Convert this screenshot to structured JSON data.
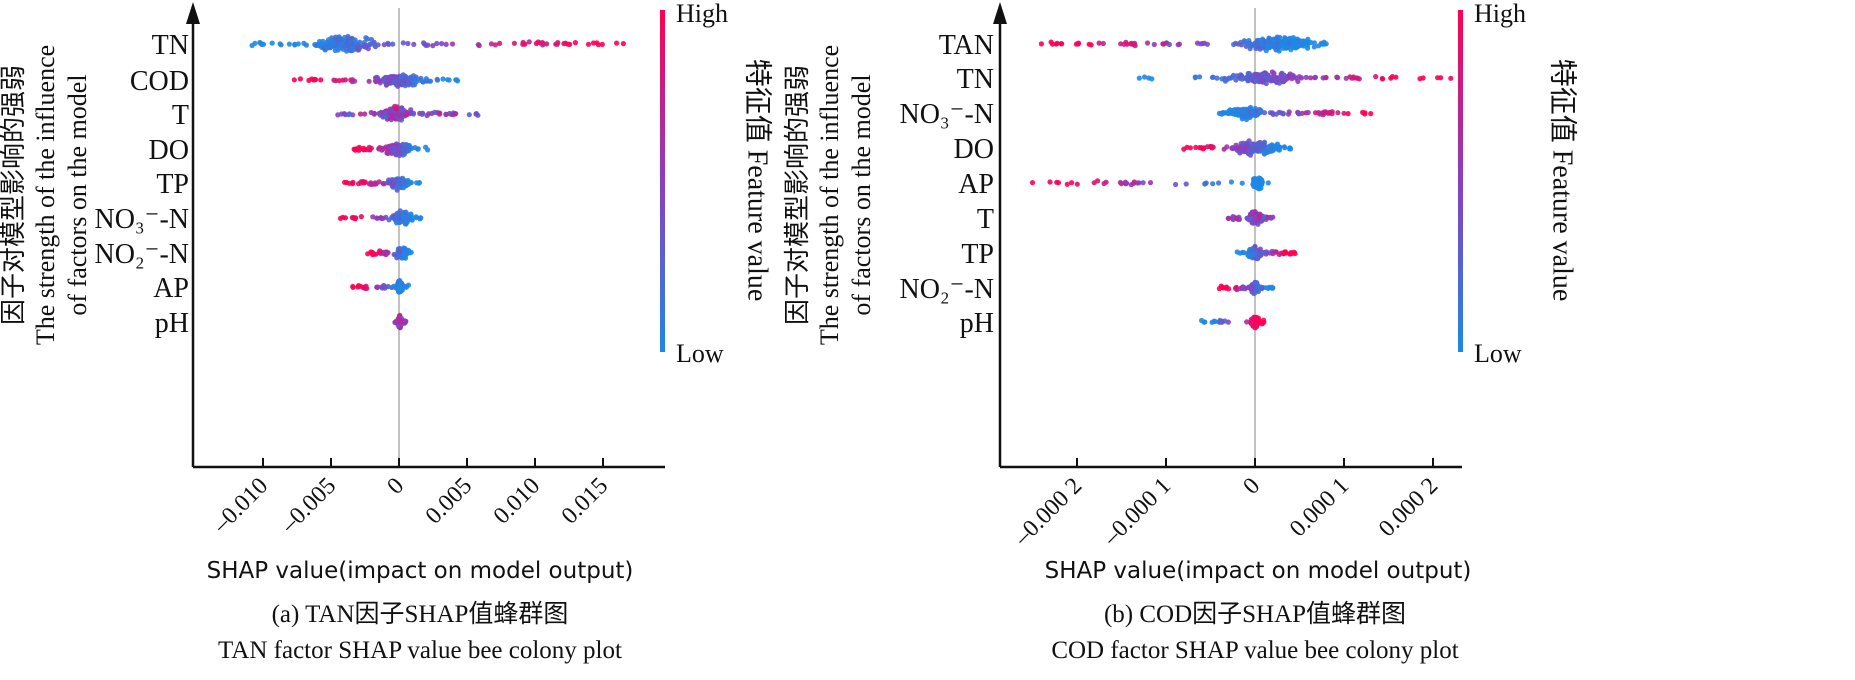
{
  "colors": {
    "low": "#1e88e5",
    "high": "#ff0052",
    "axis": "#111111",
    "zero_line": "#999999"
  },
  "chart_data": [
    {
      "type": "scatter",
      "subtype": "beeswarm",
      "caption_cn": "(a) TAN因子SHAP值蜂群图",
      "caption_en": "TAN factor SHAP value bee colony plot",
      "xlabel": "SHAP value(impact on model output)",
      "ylabel_cn": "因子对模型影响的强弱",
      "ylabel_en_1": "The strength of the influence",
      "ylabel_en_2": "of factors on the model",
      "colorbar": {
        "high": "High",
        "low": "Low",
        "title": "特征值 Feature value"
      },
      "xlim": [
        -0.0125,
        0.0175
      ],
      "xticks": [
        -0.01,
        -0.005,
        0,
        0.005,
        0.01,
        0.015
      ],
      "xtick_labels": [
        "–0.010",
        "–0.005",
        "0",
        "0.005",
        "0.010",
        "0.015"
      ],
      "features": [
        {
          "label": "TN",
          "min": -0.0108,
          "max": 0.0165,
          "core": [
            -0.0065,
            -0.0015
          ],
          "high_side": "positive"
        },
        {
          "label": "COD",
          "min": -0.0077,
          "max": 0.0043,
          "core": [
            -0.002,
            0.002
          ],
          "high_side": "negative"
        },
        {
          "label": "T",
          "min": -0.0045,
          "max": 0.0058,
          "core": [
            -0.0015,
            0.001
          ],
          "high_side": "center"
        },
        {
          "label": "DO",
          "min": -0.0033,
          "max": 0.0021,
          "core": [
            -0.001,
            0.001
          ],
          "high_side": "negative"
        },
        {
          "label": "TP",
          "min": -0.004,
          "max": 0.0015,
          "core": [
            -0.0008,
            0.0008
          ],
          "high_side": "negative"
        },
        {
          "label": "NO₃⁻-N",
          "min": -0.0043,
          "max": 0.0016,
          "core": [
            -0.0005,
            0.001
          ],
          "high_side": "negative"
        },
        {
          "label": "NO₂⁻-N",
          "min": -0.0023,
          "max": 0.0009,
          "core": [
            -0.0003,
            0.0007
          ],
          "high_side": "negative"
        },
        {
          "label": "AP",
          "min": -0.0034,
          "max": 0.0007,
          "core": [
            -0.0002,
            0.0003
          ],
          "high_side": "negative"
        },
        {
          "label": "pH",
          "min": -0.0003,
          "max": 0.0005,
          "core": [
            -0.0001,
            0.0002
          ],
          "high_side": "center"
        }
      ]
    },
    {
      "type": "scatter",
      "subtype": "beeswarm",
      "caption_cn": "(b) COD因子SHAP值蜂群图",
      "caption_en": "COD factor SHAP value bee colony plot",
      "xlabel": "SHAP value(impact on model output)",
      "ylabel_cn": "因子对模型影响的强弱",
      "ylabel_en_1": "The strength of the influence",
      "ylabel_en_2": "of factors on the model",
      "colorbar": {
        "high": "High",
        "low": "Low",
        "title": "特征值 Feature value"
      },
      "xlim": [
        -0.00029,
        0.00025
      ],
      "xticks": [
        -0.0002,
        -0.0001,
        0,
        0.0001,
        0.0002
      ],
      "xtick_labels": [
        "–0.000 2",
        "–0.000 1",
        "0",
        "0.000 1",
        "0.000 2"
      ],
      "features": [
        {
          "label": "TAN",
          "min": -0.00024,
          "max": 8e-05,
          "core": [
            -2e-05,
            7e-05
          ],
          "high_side": "negative"
        },
        {
          "label": "TN",
          "min": -0.00013,
          "max": 0.00022,
          "core": [
            -4e-05,
            6e-05
          ],
          "high_side": "positive"
        },
        {
          "label": "NO₃⁻-N",
          "min": -4e-05,
          "max": 0.00013,
          "core": [
            -3e-05,
            1e-05
          ],
          "high_side": "positive"
        },
        {
          "label": "DO",
          "min": -8e-05,
          "max": 4e-05,
          "core": [
            -3e-05,
            3e-05
          ],
          "high_side": "negative"
        },
        {
          "label": "AP",
          "min": -0.00025,
          "max": 1.5e-05,
          "core": [
            -5e-06,
            1e-05
          ],
          "high_side": "negative"
        },
        {
          "label": "T",
          "min": -3e-05,
          "max": 2e-05,
          "core": [
            -1e-05,
            1e-05
          ],
          "high_side": "center"
        },
        {
          "label": "TP",
          "min": -2e-05,
          "max": 4.5e-05,
          "core": [
            -1e-05,
            1e-05
          ],
          "high_side": "positive"
        },
        {
          "label": "NO₂⁻-N",
          "min": -4e-05,
          "max": 2e-05,
          "core": [
            -5e-06,
            5e-06
          ],
          "high_side": "negative"
        },
        {
          "label": "pH",
          "min": -6e-05,
          "max": 1e-05,
          "core": [
            -5e-06,
            5e-06
          ],
          "high_side": "positive"
        }
      ]
    }
  ]
}
